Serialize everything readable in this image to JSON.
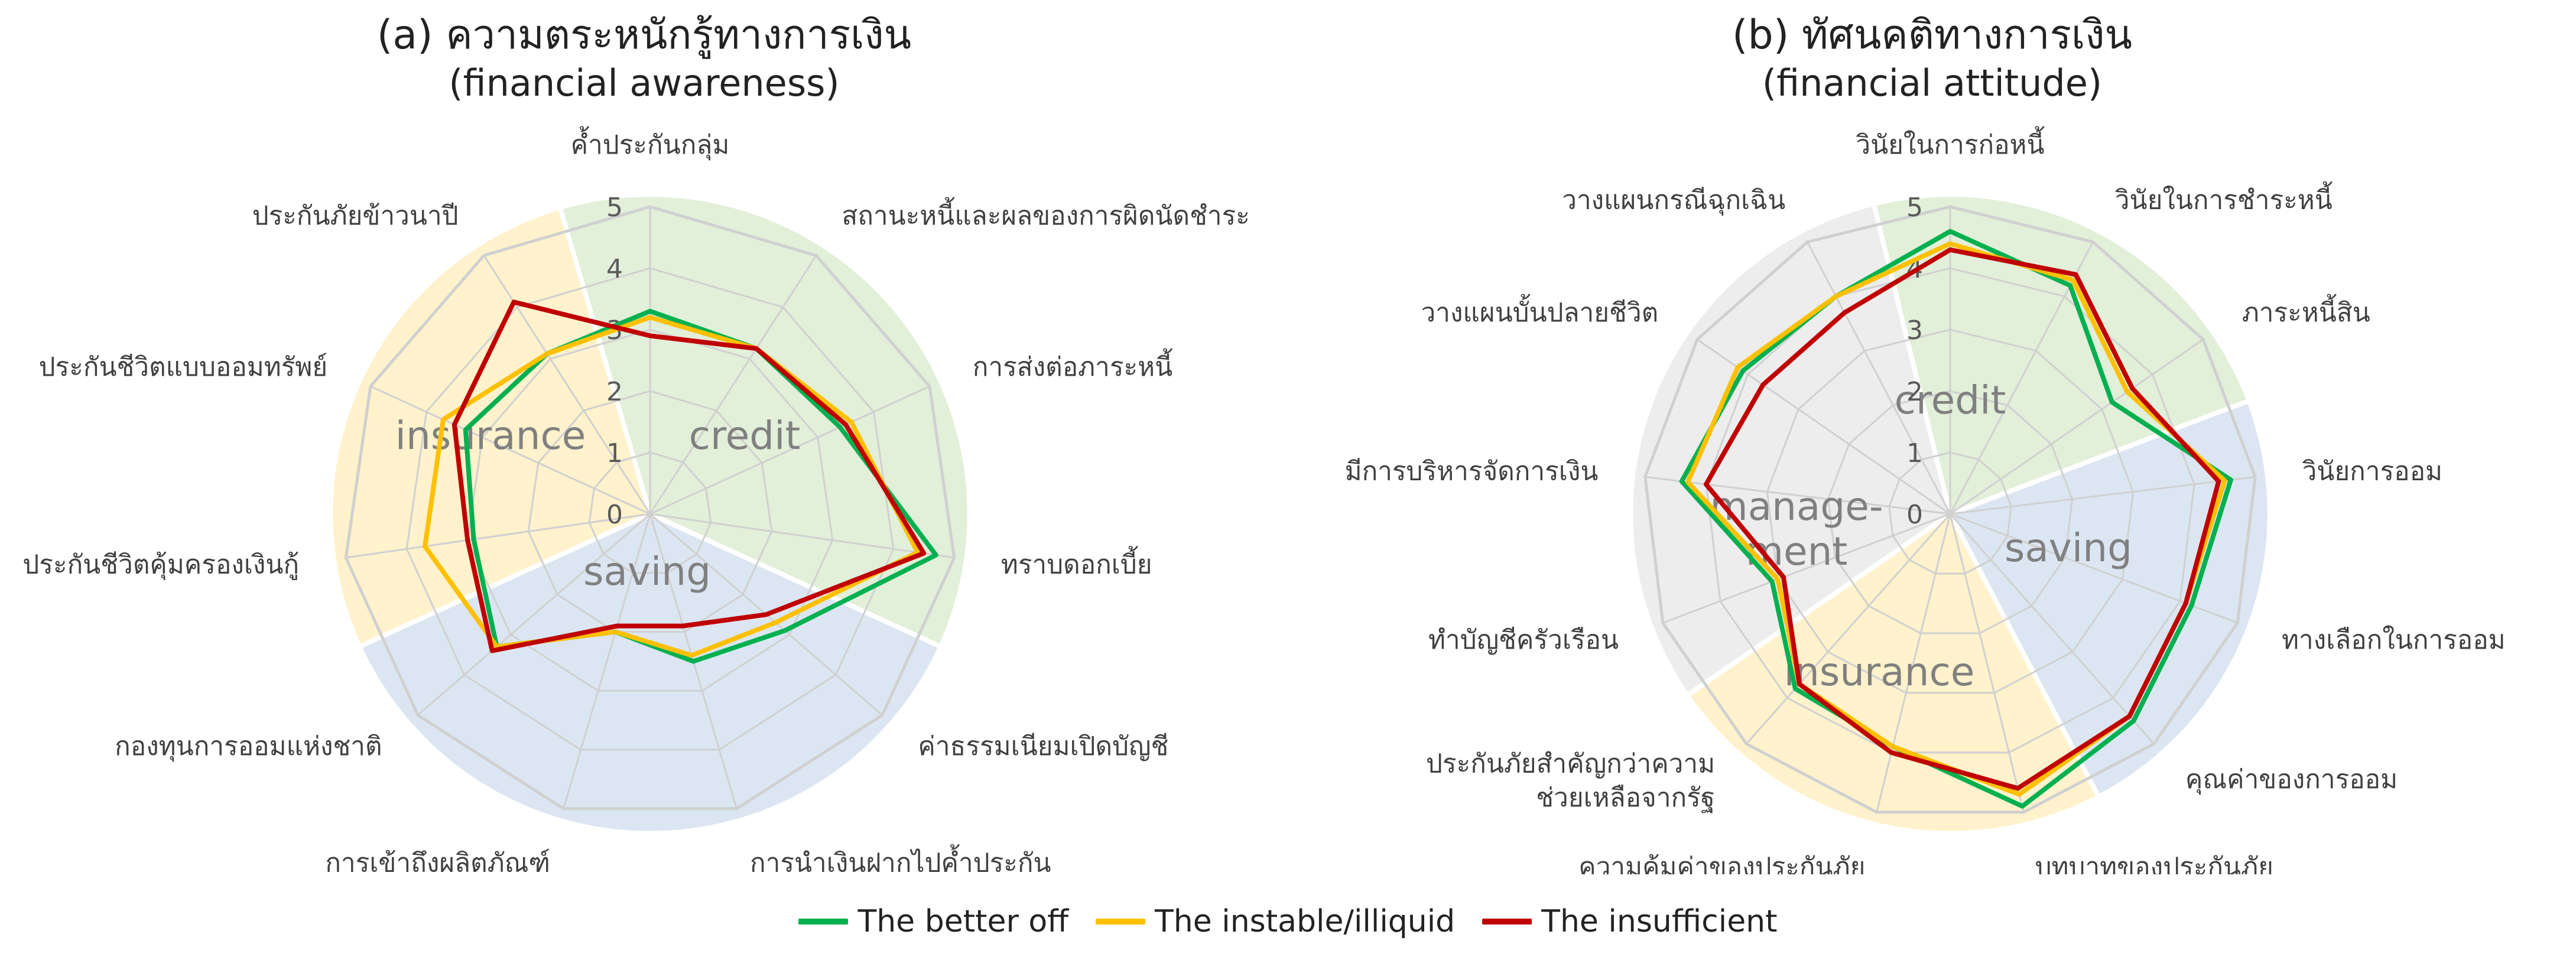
{
  "colors": {
    "better_off": "#00b050",
    "instable": "#ffc000",
    "insufficient": "#c00000",
    "credit_bg": "#e2efd9",
    "saving_bg": "#dce6f2",
    "insurance_bg": "#fff2cc",
    "management_bg": "#ededed",
    "grid": "#d0d0d0"
  },
  "legend": [
    {
      "name": "The better off",
      "color": "#00b050"
    },
    {
      "name": "The instable/illiquid",
      "color": "#ffc000"
    },
    {
      "name": "The insufficient",
      "color": "#c00000"
    }
  ],
  "chart_data": [
    {
      "type": "radar",
      "title": "(a) ความตระหนักรู้ทางการเงิน",
      "subtitle": "(financial awareness)",
      "rlim": [
        0,
        5
      ],
      "tick_labels": [
        "0",
        "1",
        "2",
        "3",
        "4",
        "5"
      ],
      "categories": [
        "ค้ำประกันกลุ่ม",
        "สถานะหนี้และผลของการผิดนัดชำระ",
        "การส่งต่อภาระหนี้",
        "ทราบดอกเบี้ย",
        "ค่าธรรมเนียมเปิดบัญชี",
        "การนำเงินฝากไปค้ำประกัน",
        "การเข้าถึงผลิตภัณฑ์",
        "กองทุนการออมแห่งชาติ",
        "ประกันชีวิตคุ้มครองเงินกู้",
        "ประกันชีวิตแบบออมทรัพย์",
        "ประกันภัยข้าวนาปี"
      ],
      "groups": [
        {
          "label": "credit",
          "categories": [
            "ค้ำประกันกลุ่ม",
            "สถานะหนี้และผลของการผิดนัดชำระ",
            "การส่งต่อภาระหนี้",
            "ทราบดอกเบี้ย"
          ],
          "color": "#e2efd9"
        },
        {
          "label": "saving",
          "categories": [
            "ค่าธรรมเนียมเปิดบัญชี",
            "การนำเงินฝากไปค้ำประกัน",
            "การเข้าถึงผลิตภัณฑ์",
            "กองทุนการออมแห่งชาติ"
          ],
          "color": "#dce6f2"
        },
        {
          "label": "insurance",
          "categories": [
            "ประกันชีวิตคุ้มครองเงินกู้",
            "ประกันชีวิตแบบออมทรัพย์",
            "ประกันภัยข้าวนาปี"
          ],
          "color": "#fff2cc"
        }
      ],
      "series": [
        {
          "name": "The better off",
          "color": "#00b050",
          "values": [
            3.3,
            3.2,
            3.4,
            4.7,
            2.9,
            2.5,
            2.0,
            3.3,
            2.9,
            3.3,
            3.1
          ]
        },
        {
          "name": "The instable/illiquid",
          "color": "#ffc000",
          "values": [
            3.2,
            3.2,
            3.6,
            4.4,
            2.7,
            2.4,
            2.0,
            3.3,
            3.7,
            3.7,
            3.1
          ]
        },
        {
          "name": "The insufficient",
          "color": "#c00000",
          "values": [
            2.9,
            3.2,
            3.5,
            4.5,
            2.5,
            1.9,
            1.9,
            3.4,
            3.0,
            3.5,
            4.1
          ]
        }
      ]
    },
    {
      "type": "radar",
      "title": "(b) ทัศนคติทางการเงิน",
      "subtitle": "(financial attitude)",
      "rlim": [
        0,
        5
      ],
      "tick_labels": [
        "0",
        "1",
        "2",
        "3",
        "4",
        "5"
      ],
      "categories": [
        "วินัยในการก่อหนี้",
        "วินัยในการชำระหนี้",
        "ภาระหนี้สิน",
        "วินัยการออม",
        "ทางเลือกในการออม",
        "คุณค่าของการออม",
        "บทบาทของประกันภัย",
        "ความคุ้มค่าของประกันภัย",
        "ประกันภัยสำคัญกว่าความช่วยเหลือจากรัฐ",
        "ทำบัญชีครัวเรือน",
        "มีการบริหารจัดการเงิน",
        "วางแผนบั้นปลายชีวิต",
        "วางแผนกรณีฉุกเฉิน"
      ],
      "groups": [
        {
          "label": "credit",
          "categories": [
            "วินัยในการก่อหนี้",
            "วินัยในการชำระหนี้",
            "ภาระหนี้สิน"
          ],
          "color": "#e2efd9"
        },
        {
          "label": "saving",
          "categories": [
            "วินัยการออม",
            "ทางเลือกในการออม",
            "คุณค่าของการออม"
          ],
          "color": "#dce6f2"
        },
        {
          "label": "insurance",
          "categories": [
            "บทบาทของประกันภัย",
            "ความคุ้มค่าของประกันภัย",
            "ประกันภัยสำคัญกว่าความช่วยเหลือจากรัฐ"
          ],
          "color": "#fff2cc"
        },
        {
          "label": "manage-ment",
          "categories": [
            "ทำบัญชีครัวเรือน",
            "มีการบริหารจัดการเงิน",
            "วางแผนบั้นปลายชีวิต",
            "วางแผนกรณีฉุกเฉิน"
          ],
          "color": "#ededed"
        }
      ],
      "series": [
        {
          "name": "The better off",
          "color": "#00b050",
          "values": [
            4.6,
            4.2,
            3.2,
            4.6,
            4.2,
            4.5,
            4.9,
            3.9,
            3.8,
            3.1,
            4.4,
            4.1,
            4.0
          ]
        },
        {
          "name": "The instable/illiquid",
          "color": "#ffc000",
          "values": [
            4.4,
            4.3,
            3.5,
            4.5,
            4.1,
            4.4,
            4.7,
            3.9,
            3.7,
            3.0,
            4.3,
            4.2,
            4.0
          ]
        },
        {
          "name": "The insufficient",
          "color": "#c00000",
          "values": [
            4.3,
            4.4,
            3.6,
            4.4,
            4.1,
            4.4,
            4.6,
            4.0,
            3.7,
            2.9,
            4.0,
            3.7,
            3.7
          ]
        }
      ]
    }
  ]
}
